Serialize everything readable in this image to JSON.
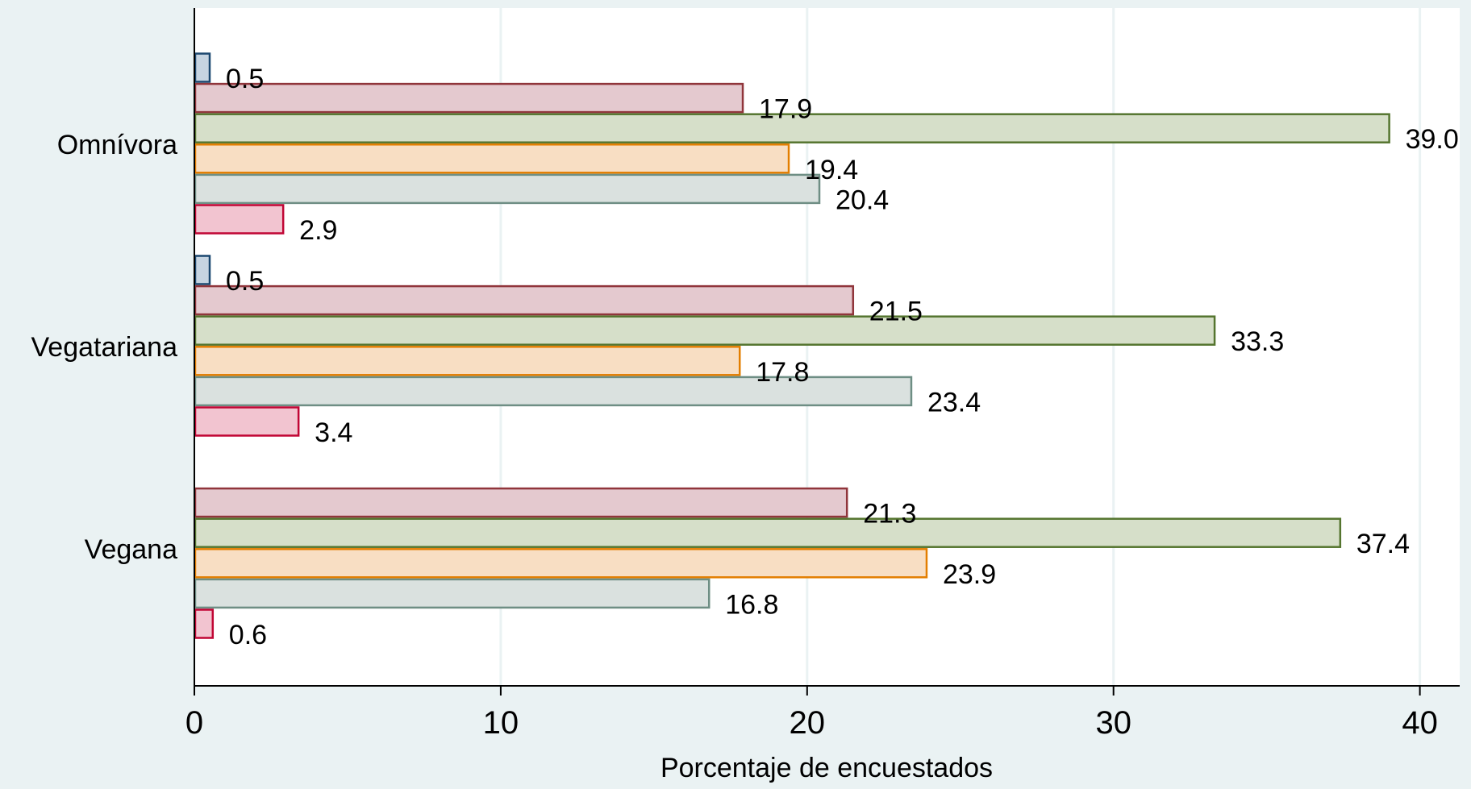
{
  "chart_data": {
    "type": "bar",
    "orientation": "horizontal",
    "title": "",
    "xlabel": "Porcentaje de encuestados",
    "ylabel": "",
    "xlim": [
      0,
      41.3
    ],
    "x_ticks": [
      0,
      10,
      20,
      30,
      40
    ],
    "grid": true,
    "legend": "none",
    "categories": [
      "Omnívora",
      "Vegatariana",
      "Vegana"
    ],
    "series": [
      {
        "fill": "#c6d4e1",
        "stroke": "#1a476f",
        "values": [
          0.5,
          0.5,
          null
        ],
        "labels": [
          "0.5",
          "0.5",
          ""
        ]
      },
      {
        "fill": "#e4c9cf",
        "stroke": "#90353b",
        "values": [
          17.9,
          21.5,
          21.3
        ],
        "labels": [
          "17.9",
          "21.5",
          "21.3"
        ]
      },
      {
        "fill": "#d6dfc9",
        "stroke": "#55752f",
        "values": [
          39.0,
          33.3,
          37.4
        ],
        "labels": [
          "39.0",
          "33.3",
          "37.4"
        ]
      },
      {
        "fill": "#f8dec3",
        "stroke": "#e37e00",
        "values": [
          19.4,
          17.8,
          23.9
        ],
        "labels": [
          "19.4",
          "17.8",
          "23.9"
        ]
      },
      {
        "fill": "#dae1df",
        "stroke": "#6e8e84",
        "values": [
          20.4,
          23.4,
          16.8
        ],
        "labels": [
          "20.4",
          "23.4",
          "16.8"
        ]
      },
      {
        "fill": "#f2c4d0",
        "stroke": "#c10534",
        "values": [
          2.9,
          3.4,
          0.6
        ],
        "labels": [
          "2.9",
          "3.4",
          "0.6"
        ]
      }
    ]
  },
  "colors": {
    "background": "#eaf2f3",
    "plot_background": "#ffffff",
    "gridline": "#eaf2f3",
    "axis": "#000000"
  }
}
